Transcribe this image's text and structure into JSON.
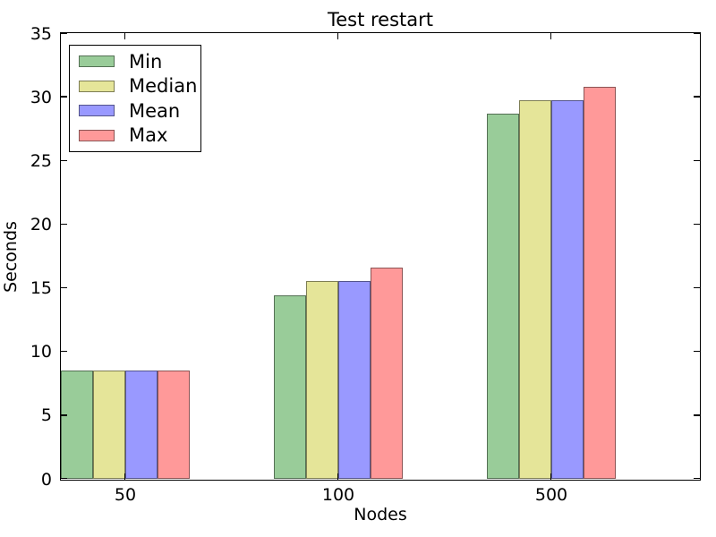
{
  "figure": {
    "background": "#ffffff",
    "title": "Test restart",
    "xlabel": "Nodes",
    "ylabel": "Seconds"
  },
  "chart_data": {
    "type": "bar",
    "title": "Test restart",
    "xlabel": "Nodes",
    "ylabel": "Seconds",
    "categories": [
      "50",
      "100",
      "500"
    ],
    "series": [
      {
        "name": "Min",
        "color": "#99cc99",
        "values": [
          8.5,
          14.4,
          28.7
        ]
      },
      {
        "name": "Median",
        "color": "#e5e599",
        "values": [
          8.5,
          15.5,
          29.7
        ]
      },
      {
        "name": "Mean",
        "color": "#9999ff",
        "values": [
          8.5,
          15.5,
          29.7
        ]
      },
      {
        "name": "Max",
        "color": "#ff9999",
        "values": [
          8.5,
          16.6,
          30.8
        ]
      }
    ],
    "ylim": [
      0,
      35
    ],
    "y_ticks": [
      0,
      5,
      10,
      15,
      20,
      25,
      30,
      35
    ],
    "legend_position": "upper left",
    "grid": false,
    "edge_color": "rgba(0,0,0,0.45)",
    "axis_color": "#000000"
  }
}
